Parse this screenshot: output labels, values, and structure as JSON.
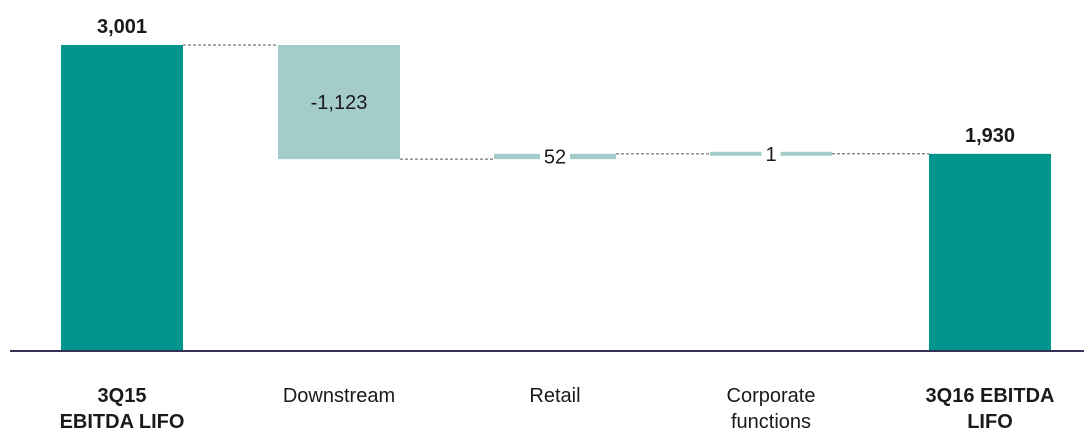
{
  "chart_data": {
    "type": "waterfall",
    "categories": [
      "3Q15\nEBITDA LIFO",
      "Downstream",
      "Retail",
      "Corporate\nfunctions",
      "3Q16 EBITDA\nLIFO"
    ],
    "values": [
      3001,
      -1123,
      52,
      1,
      1930
    ],
    "value_labels": [
      "3,001",
      "-1,123",
      "52",
      "1",
      "1,930"
    ],
    "bar_kinds": [
      "total",
      "delta",
      "delta",
      "delta",
      "total"
    ],
    "bold_categories": [
      true,
      false,
      false,
      false,
      true
    ],
    "colors": {
      "total": "#00968f",
      "delta": "#a3cccb",
      "connector": "#555555",
      "axis": "#333355"
    },
    "ylim": [
      0,
      3001
    ],
    "grid": false,
    "legend": "none"
  }
}
